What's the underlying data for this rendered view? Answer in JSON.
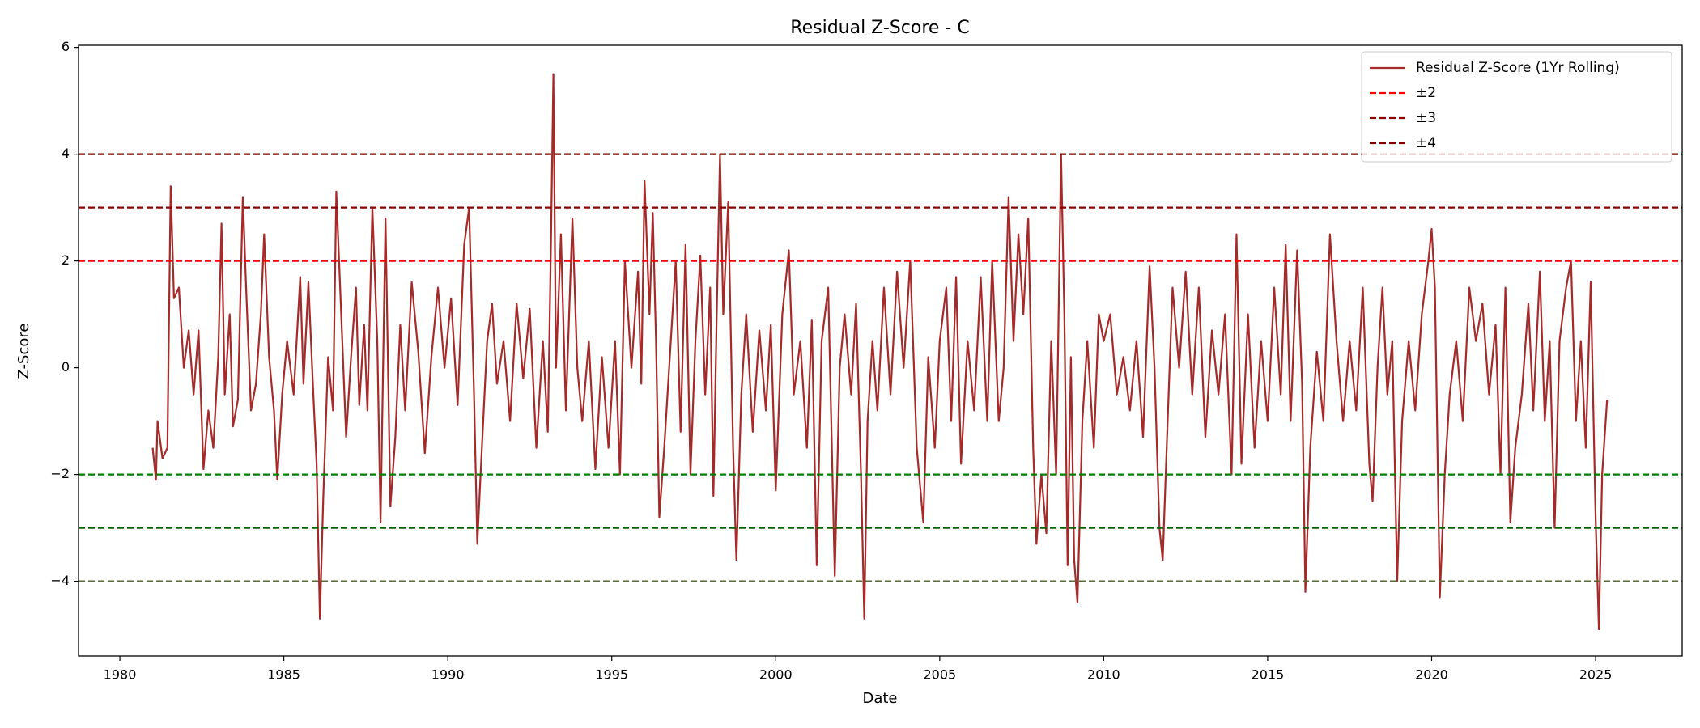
{
  "chart_data": {
    "type": "line",
    "title": "Residual Z-Score - C",
    "xlabel": "Date",
    "ylabel": "Z-Score",
    "xlim": [
      1978.74,
      2027.64
    ],
    "ylim": [
      -5.4,
      6.04
    ],
    "xticks": [
      1980,
      1985,
      1990,
      1995,
      2000,
      2005,
      2010,
      2015,
      2020,
      2025
    ],
    "yticks": [
      {
        "value": -4,
        "label": "−4"
      },
      {
        "value": -2,
        "label": "−2"
      },
      0,
      2,
      4,
      6
    ],
    "legend": "upper right",
    "series": [
      {
        "name": "Residual Z-Score (1Yr Rolling)",
        "color": "#a52a2a",
        "x": [
          1981.0,
          1981.1,
          1981.15,
          1981.3,
          1981.45,
          1981.55,
          1981.65,
          1981.8,
          1981.95,
          1982.1,
          1982.25,
          1982.4,
          1982.55,
          1982.7,
          1982.85,
          1983.0,
          1983.1,
          1983.2,
          1983.35,
          1983.45,
          1983.6,
          1983.75,
          1983.85,
          1984.0,
          1984.15,
          1984.3,
          1984.4,
          1984.55,
          1984.7,
          1984.8,
          1984.95,
          1985.1,
          1985.3,
          1985.5,
          1985.6,
          1985.75,
          1985.9,
          1986.0,
          1986.1,
          1986.2,
          1986.35,
          1986.5,
          1986.6,
          1986.75,
          1986.9,
          1987.05,
          1987.2,
          1987.3,
          1987.45,
          1987.55,
          1987.7,
          1987.85,
          1987.95,
          1988.1,
          1988.25,
          1988.4,
          1988.55,
          1988.7,
          1988.9,
          1989.1,
          1989.3,
          1989.5,
          1989.7,
          1989.9,
          1990.1,
          1990.3,
          1990.5,
          1990.65,
          1990.8,
          1990.9,
          1991.0,
          1991.2,
          1991.35,
          1991.5,
          1991.7,
          1991.9,
          1992.1,
          1992.3,
          1992.5,
          1992.7,
          1992.9,
          1993.05,
          1993.15,
          1993.22,
          1993.3,
          1993.45,
          1993.6,
          1993.8,
          1993.95,
          1994.1,
          1994.3,
          1994.5,
          1994.7,
          1994.9,
          1995.1,
          1995.25,
          1995.4,
          1995.6,
          1995.8,
          1995.9,
          1996.0,
          1996.15,
          1996.25,
          1996.35,
          1996.45,
          1996.6,
          1996.8,
          1996.95,
          1997.1,
          1997.25,
          1997.4,
          1997.55,
          1997.7,
          1997.85,
          1998.0,
          1998.1,
          1998.2,
          1998.3,
          1998.4,
          1998.55,
          1998.7,
          1998.8,
          1998.95,
          1999.1,
          1999.3,
          1999.5,
          1999.7,
          1999.85,
          2000.0,
          2000.2,
          2000.4,
          2000.55,
          2000.75,
          2000.95,
          2001.1,
          2001.25,
          2001.4,
          2001.6,
          2001.8,
          2001.95,
          2002.1,
          2002.3,
          2002.45,
          2002.6,
          2002.7,
          2002.8,
          2002.95,
          2003.1,
          2003.3,
          2003.5,
          2003.7,
          2003.9,
          2004.1,
          2004.3,
          2004.5,
          2004.65,
          2004.85,
          2005.0,
          2005.2,
          2005.35,
          2005.5,
          2005.65,
          2005.85,
          2006.05,
          2006.25,
          2006.45,
          2006.6,
          2006.8,
          2006.95,
          2007.1,
          2007.25,
          2007.4,
          2007.55,
          2007.7,
          2007.85,
          2007.95,
          2008.1,
          2008.25,
          2008.4,
          2008.55,
          2008.7,
          2008.8,
          2008.9,
          2009.0,
          2009.1,
          2009.2,
          2009.35,
          2009.5,
          2009.7,
          2009.85,
          2010.0,
          2010.2,
          2010.4,
          2010.6,
          2010.8,
          2011.0,
          2011.2,
          2011.4,
          2011.55,
          2011.7,
          2011.8,
          2011.95,
          2012.1,
          2012.3,
          2012.5,
          2012.7,
          2012.9,
          2013.1,
          2013.3,
          2013.5,
          2013.7,
          2013.9,
          2014.05,
          2014.2,
          2014.4,
          2014.6,
          2014.8,
          2015.0,
          2015.2,
          2015.4,
          2015.55,
          2015.7,
          2015.9,
          2016.05,
          2016.15,
          2016.3,
          2016.5,
          2016.7,
          2016.9,
          2017.1,
          2017.3,
          2017.5,
          2017.7,
          2017.9,
          2018.1,
          2018.2,
          2018.35,
          2018.5,
          2018.65,
          2018.8,
          2018.95,
          2019.1,
          2019.3,
          2019.5,
          2019.7,
          2019.9,
          2020.0,
          2020.1,
          2020.25,
          2020.4,
          2020.55,
          2020.75,
          2020.95,
          2021.15,
          2021.35,
          2021.55,
          2021.75,
          2021.95,
          2022.1,
          2022.25,
          2022.4,
          2022.55,
          2022.75,
          2022.95,
          2023.1,
          2023.3,
          2023.45,
          2023.6,
          2023.75,
          2023.9,
          2024.1,
          2024.25,
          2024.4,
          2024.55,
          2024.7,
          2024.85,
          2025.0,
          2025.1,
          2025.2,
          2025.35
        ],
        "values": [
          -1.5,
          -2.1,
          -1.0,
          -1.7,
          -1.5,
          3.4,
          1.3,
          1.5,
          0.0,
          0.7,
          -0.5,
          0.7,
          -1.9,
          -0.8,
          -1.5,
          0.2,
          2.7,
          -0.5,
          1.0,
          -1.1,
          -0.6,
          3.2,
          1.5,
          -0.8,
          -0.3,
          1.0,
          2.5,
          0.2,
          -0.8,
          -2.1,
          -0.5,
          0.5,
          -0.5,
          1.7,
          -0.3,
          1.6,
          -0.5,
          -1.8,
          -4.7,
          -2.5,
          0.2,
          -0.8,
          3.3,
          1.0,
          -1.3,
          0.2,
          1.5,
          -0.7,
          0.8,
          -0.8,
          3.0,
          0.5,
          -2.9,
          2.8,
          -2.6,
          -1.3,
          0.8,
          -0.8,
          1.6,
          0.3,
          -1.6,
          0.2,
          1.5,
          0.0,
          1.3,
          -0.7,
          2.3,
          3.0,
          -0.5,
          -3.3,
          -2.0,
          0.5,
          1.2,
          -0.3,
          0.5,
          -1.0,
          1.2,
          -0.2,
          1.1,
          -1.5,
          0.5,
          -1.2,
          2.5,
          5.5,
          0.0,
          2.5,
          -0.8,
          2.8,
          0.0,
          -1.0,
          0.5,
          -1.9,
          0.2,
          -1.5,
          0.5,
          -2.0,
          2.0,
          0.0,
          1.8,
          -0.3,
          3.5,
          1.0,
          2.9,
          0.5,
          -2.8,
          -1.5,
          0.5,
          2.0,
          -1.2,
          2.3,
          -2.0,
          0.5,
          2.1,
          -0.5,
          1.5,
          -2.4,
          1.0,
          4.0,
          1.0,
          3.1,
          -1.5,
          -3.6,
          -0.5,
          1.0,
          -1.2,
          0.7,
          -0.8,
          0.8,
          -2.3,
          1.0,
          2.2,
          -0.5,
          0.5,
          -1.5,
          0.9,
          -3.7,
          0.5,
          1.5,
          -3.9,
          0.0,
          1.0,
          -0.5,
          1.2,
          -2.0,
          -4.7,
          -1.0,
          0.5,
          -0.8,
          1.5,
          -0.5,
          1.8,
          0.0,
          2.0,
          -1.5,
          -2.9,
          0.2,
          -1.5,
          0.5,
          1.5,
          -1.0,
          1.7,
          -1.8,
          0.5,
          -0.8,
          1.7,
          -1.0,
          2.0,
          -1.0,
          0.0,
          3.2,
          0.5,
          2.5,
          1.0,
          2.8,
          -1.5,
          -3.3,
          -2.0,
          -3.1,
          0.5,
          -2.0,
          4.0,
          1.0,
          -3.7,
          0.2,
          -3.6,
          -4.4,
          -1.0,
          0.5,
          -1.5,
          1.0,
          0.5,
          1.0,
          -0.5,
          0.2,
          -0.8,
          0.5,
          -1.3,
          1.9,
          0.0,
          -3.0,
          -3.6,
          -1.0,
          1.5,
          0.0,
          1.8,
          -0.5,
          1.5,
          -1.3,
          0.7,
          -0.5,
          1.0,
          -2.0,
          2.5,
          -1.8,
          1.0,
          -1.5,
          0.5,
          -1.0,
          1.5,
          -0.5,
          2.3,
          -1.0,
          2.2,
          -0.3,
          -4.2,
          -1.5,
          0.3,
          -1.0,
          2.5,
          0.5,
          -1.0,
          0.5,
          -0.8,
          1.5,
          -1.8,
          -2.5,
          0.0,
          1.5,
          -0.5,
          0.5,
          -4.0,
          -1.0,
          0.5,
          -0.8,
          1.0,
          2.0,
          2.6,
          1.5,
          -4.3,
          -2.0,
          -0.5,
          0.5,
          -1.0,
          1.5,
          0.5,
          1.2,
          -0.5,
          0.8,
          -2.0,
          1.5,
          -2.9,
          -1.5,
          -0.5,
          1.2,
          -0.8,
          1.8,
          -1.0,
          0.5,
          -3.0,
          0.5,
          1.5,
          2.0,
          -1.0,
          0.5,
          -1.5,
          1.6,
          -2.8,
          -4.9,
          -2.0,
          -0.6
        ]
      }
    ],
    "reference_lines": [
      {
        "name": "±2",
        "values": [
          2,
          -2
        ],
        "colors": [
          "#ff0000",
          "#008000"
        ]
      },
      {
        "name": "±3",
        "values": [
          3,
          -3
        ],
        "colors": [
          "#8b0000",
          "#006400"
        ]
      },
      {
        "name": "±4",
        "values": [
          4,
          -4
        ],
        "colors": [
          "#800000",
          "#556b2f"
        ]
      }
    ]
  }
}
